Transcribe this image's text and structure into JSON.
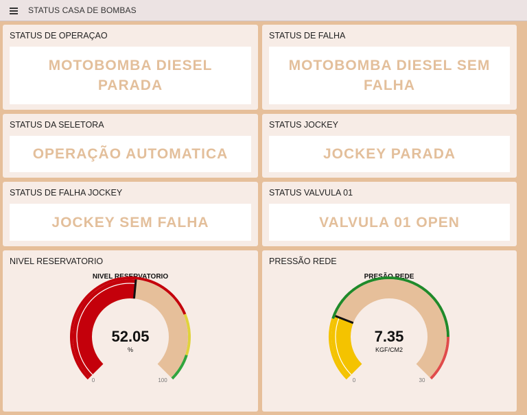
{
  "header": {
    "title": "STATUS CASA DE BOMBAS",
    "menu_icon": "hamburger-menu-icon"
  },
  "cards": {
    "operacao": {
      "title": "STATUS DE OPERAÇAO",
      "value": "MOTOBOMBA DIESEL PARADA"
    },
    "falha": {
      "title": "STATUS DE FALHA",
      "value": "MOTOBOMBA DIESEL SEM FALHA"
    },
    "seletora": {
      "title": "STATUS DA SELETORA",
      "value": "OPERAÇÃO AUTOMATICA"
    },
    "jockey": {
      "title": "STATUS JOCKEY",
      "value": "JOCKEY PARADA"
    },
    "falha_jockey": {
      "title": "STATUS DE FALHA JOCKEY",
      "value": "JOCKEY SEM FALHA"
    },
    "valvula": {
      "title": "STATUS VALVULA 01",
      "value": "VALVULA 01 OPEN"
    }
  },
  "gauges": {
    "reservatorio": {
      "card_title": "NIVEL RESERVATORIO",
      "title": "NIVEL RESERVATORIO",
      "value": "52.05",
      "level": 52.05,
      "unit": "%",
      "min": 0,
      "max": 100,
      "min_label": "0",
      "max_label": "100",
      "fill_color": "#c4000b",
      "track_color": "#e6bf9a",
      "zones": [
        {
          "from": 0,
          "to": 75,
          "color": "#c4000b"
        },
        {
          "from": 75,
          "to": 90,
          "color": "#e0d23c"
        },
        {
          "from": 90,
          "to": 100,
          "color": "#30a53e"
        }
      ]
    },
    "pressao": {
      "card_title": "PRESSÃO REDE",
      "title": "PRESÃO REDE",
      "value": "7.35",
      "level": 7.35,
      "unit": "KGF/CM2",
      "min": 0,
      "max": 30,
      "min_label": "0",
      "max_label": "30",
      "fill_color": "#f4c300",
      "track_color": "#e6bf9a",
      "zones": [
        {
          "from": 0,
          "to": 7,
          "color": "#f4c300"
        },
        {
          "from": 7,
          "to": 25,
          "color": "#1f8a2a"
        },
        {
          "from": 25,
          "to": 30,
          "color": "#e04b4b"
        }
      ]
    }
  },
  "colors": {
    "background": "#e6bf9a",
    "card": "#f7ece6",
    "status_text": "#e3bf9b",
    "header": "#ece3e3"
  }
}
